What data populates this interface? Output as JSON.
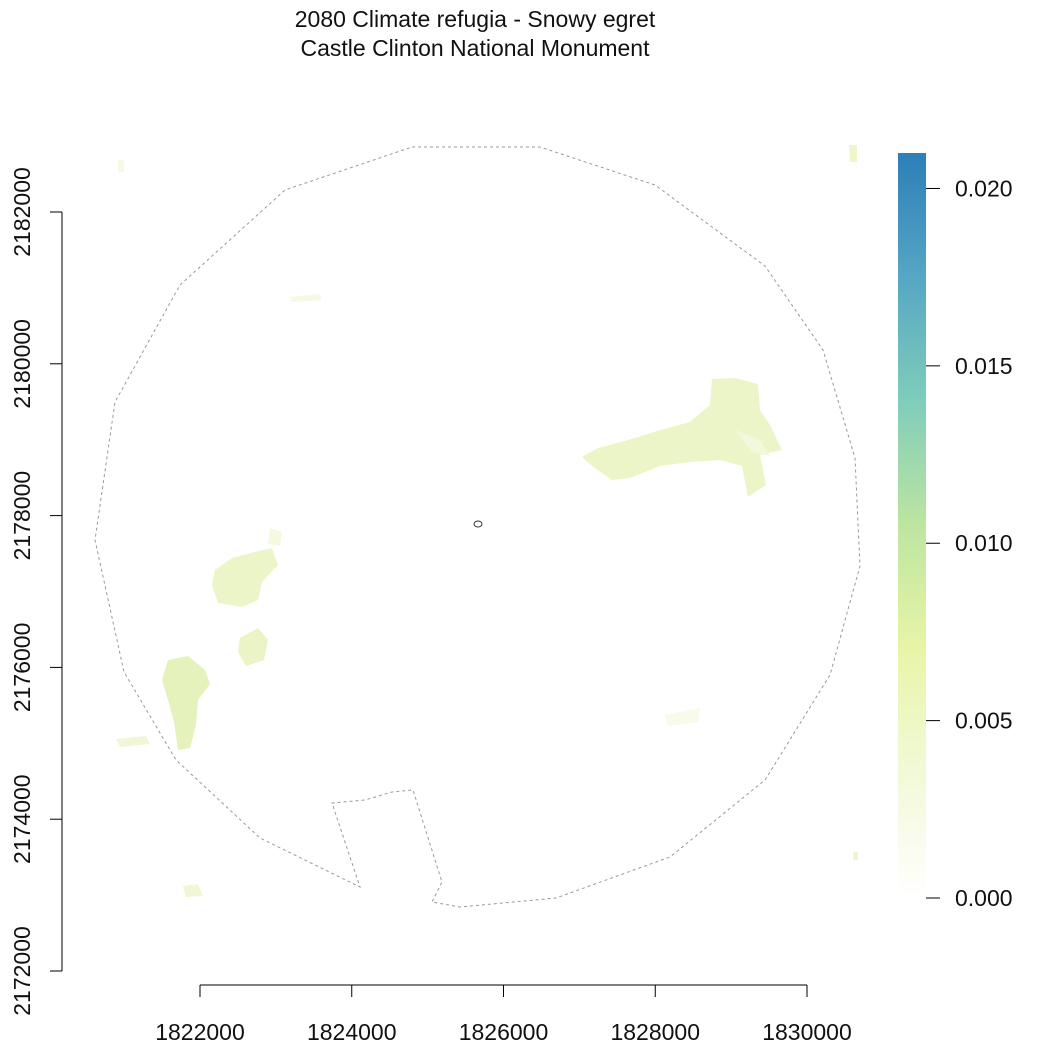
{
  "title": "2080 Climate refugia - Snowy egret",
  "subtitle": "Castle Clinton National Monument",
  "x_axis": {
    "ticks": [
      1822000,
      1824000,
      1826000,
      1828000,
      1830000
    ],
    "tick_labels": [
      "1822000",
      "1824000",
      "1826000",
      "1828000",
      "1830000"
    ]
  },
  "y_axis": {
    "ticks": [
      2172000,
      2174000,
      2176000,
      2178000,
      2180000,
      2182000
    ],
    "tick_labels": [
      "2172000",
      "2174000",
      "2176000",
      "2178000",
      "2180000",
      "2182000"
    ]
  },
  "legend": {
    "ticks": [
      0.0,
      0.005,
      0.01,
      0.015,
      0.02
    ],
    "tick_labels": [
      "0.000",
      "0.005",
      "0.010",
      "0.015",
      "0.020"
    ],
    "range": [
      0.0,
      0.021
    ],
    "colors": [
      "#ffffff",
      "#f2f9d8",
      "#e8f5a8",
      "#bde5a0",
      "#7fcdbb",
      "#56a6c4",
      "#2c7fb8"
    ]
  },
  "map": {
    "boundary_style": "dashed grey outline",
    "site_marker": "small open circle near map center",
    "refugia_colors": [
      "#f1f8d2",
      "#ebf4c4",
      "#e4f1b6",
      "#f5fae4"
    ]
  }
}
